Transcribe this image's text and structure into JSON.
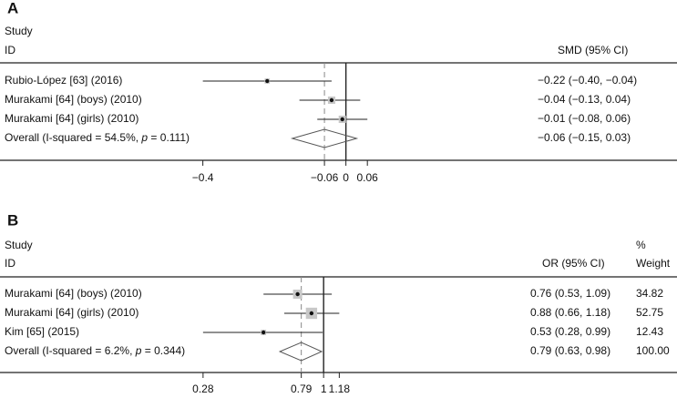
{
  "chart_data": [
    {
      "type": "forest",
      "panel_label": "A",
      "header": {
        "study_line1": "Study",
        "study_line2": "ID",
        "effect_col": "SMD (95% CI)"
      },
      "rows": [
        {
          "study": "Rubio-López [63] (2016)",
          "estimate": -0.22,
          "lower": -0.4,
          "upper": -0.04,
          "ci_text": "−0.22 (−0.40, −0.04)",
          "weight_rel": 0.2
        },
        {
          "study": "Murakami [64] (boys) (2010)",
          "estimate": -0.04,
          "lower": -0.13,
          "upper": 0.04,
          "ci_text": "−0.04 (−0.13, 0.04)",
          "weight_rel": 0.4
        },
        {
          "study": "Murakami [64] (girls) (2010)",
          "estimate": -0.01,
          "lower": -0.08,
          "upper": 0.06,
          "ci_text": "−0.01 (−0.08, 0.06)",
          "weight_rel": 0.4
        }
      ],
      "overall": {
        "label_pre": "Overall (I-squared = 54.5%, ",
        "label_p": "p",
        "label_post": " = 0.111)",
        "estimate": -0.06,
        "lower": -0.15,
        "upper": 0.03,
        "ci_text": "−0.06 (−0.15, 0.03)"
      },
      "null_line": 0,
      "scale": "linear",
      "xlim": [
        -0.45,
        0.085
      ],
      "ticks": [
        {
          "value": -0.4,
          "label": "−0.4"
        },
        {
          "value": -0.06,
          "label": "−0.06"
        },
        {
          "value": 0,
          "label": "0"
        },
        {
          "value": 0.06,
          "label": "0.06"
        }
      ]
    },
    {
      "type": "forest",
      "panel_label": "B",
      "header": {
        "study_line1": "Study",
        "study_line2": "ID",
        "effect_col": "OR (95% CI)",
        "weight_col_line1": "%",
        "weight_col_line2": "Weight"
      },
      "rows": [
        {
          "study": "Murakami [64] (boys) (2010)",
          "estimate": 0.76,
          "lower": 0.53,
          "upper": 1.09,
          "ci_text": "0.76 (0.53, 1.09)",
          "weight": "34.82",
          "weight_rel": 0.35
        },
        {
          "study": "Murakami [64] (girls) (2010)",
          "estimate": 0.88,
          "lower": 0.66,
          "upper": 1.18,
          "ci_text": "0.88 (0.66, 1.18)",
          "weight": "52.75",
          "weight_rel": 0.53
        },
        {
          "study": "Kim [65] (2015)",
          "estimate": 0.53,
          "lower": 0.28,
          "upper": 0.99,
          "ci_text": "0.53 (0.28, 0.99)",
          "weight": "12.43",
          "weight_rel": 0.12
        }
      ],
      "overall": {
        "label_pre": "Overall (I-squared = 6.2%, ",
        "label_p": "p",
        "label_post": " = 0.344)",
        "estimate": 0.79,
        "lower": 0.63,
        "upper": 0.98,
        "ci_text": "0.79 (0.63, 0.98)",
        "weight": "100.00"
      },
      "null_line": 1,
      "scale": "log",
      "xlim": [
        0.17,
        1.27
      ],
      "ticks": [
        {
          "value": 0.28,
          "label": "0.28"
        },
        {
          "value": 0.79,
          "label": "0.79"
        },
        {
          "value": 1,
          "label": "1"
        },
        {
          "value": 1.18,
          "label": "1.18"
        }
      ]
    }
  ]
}
